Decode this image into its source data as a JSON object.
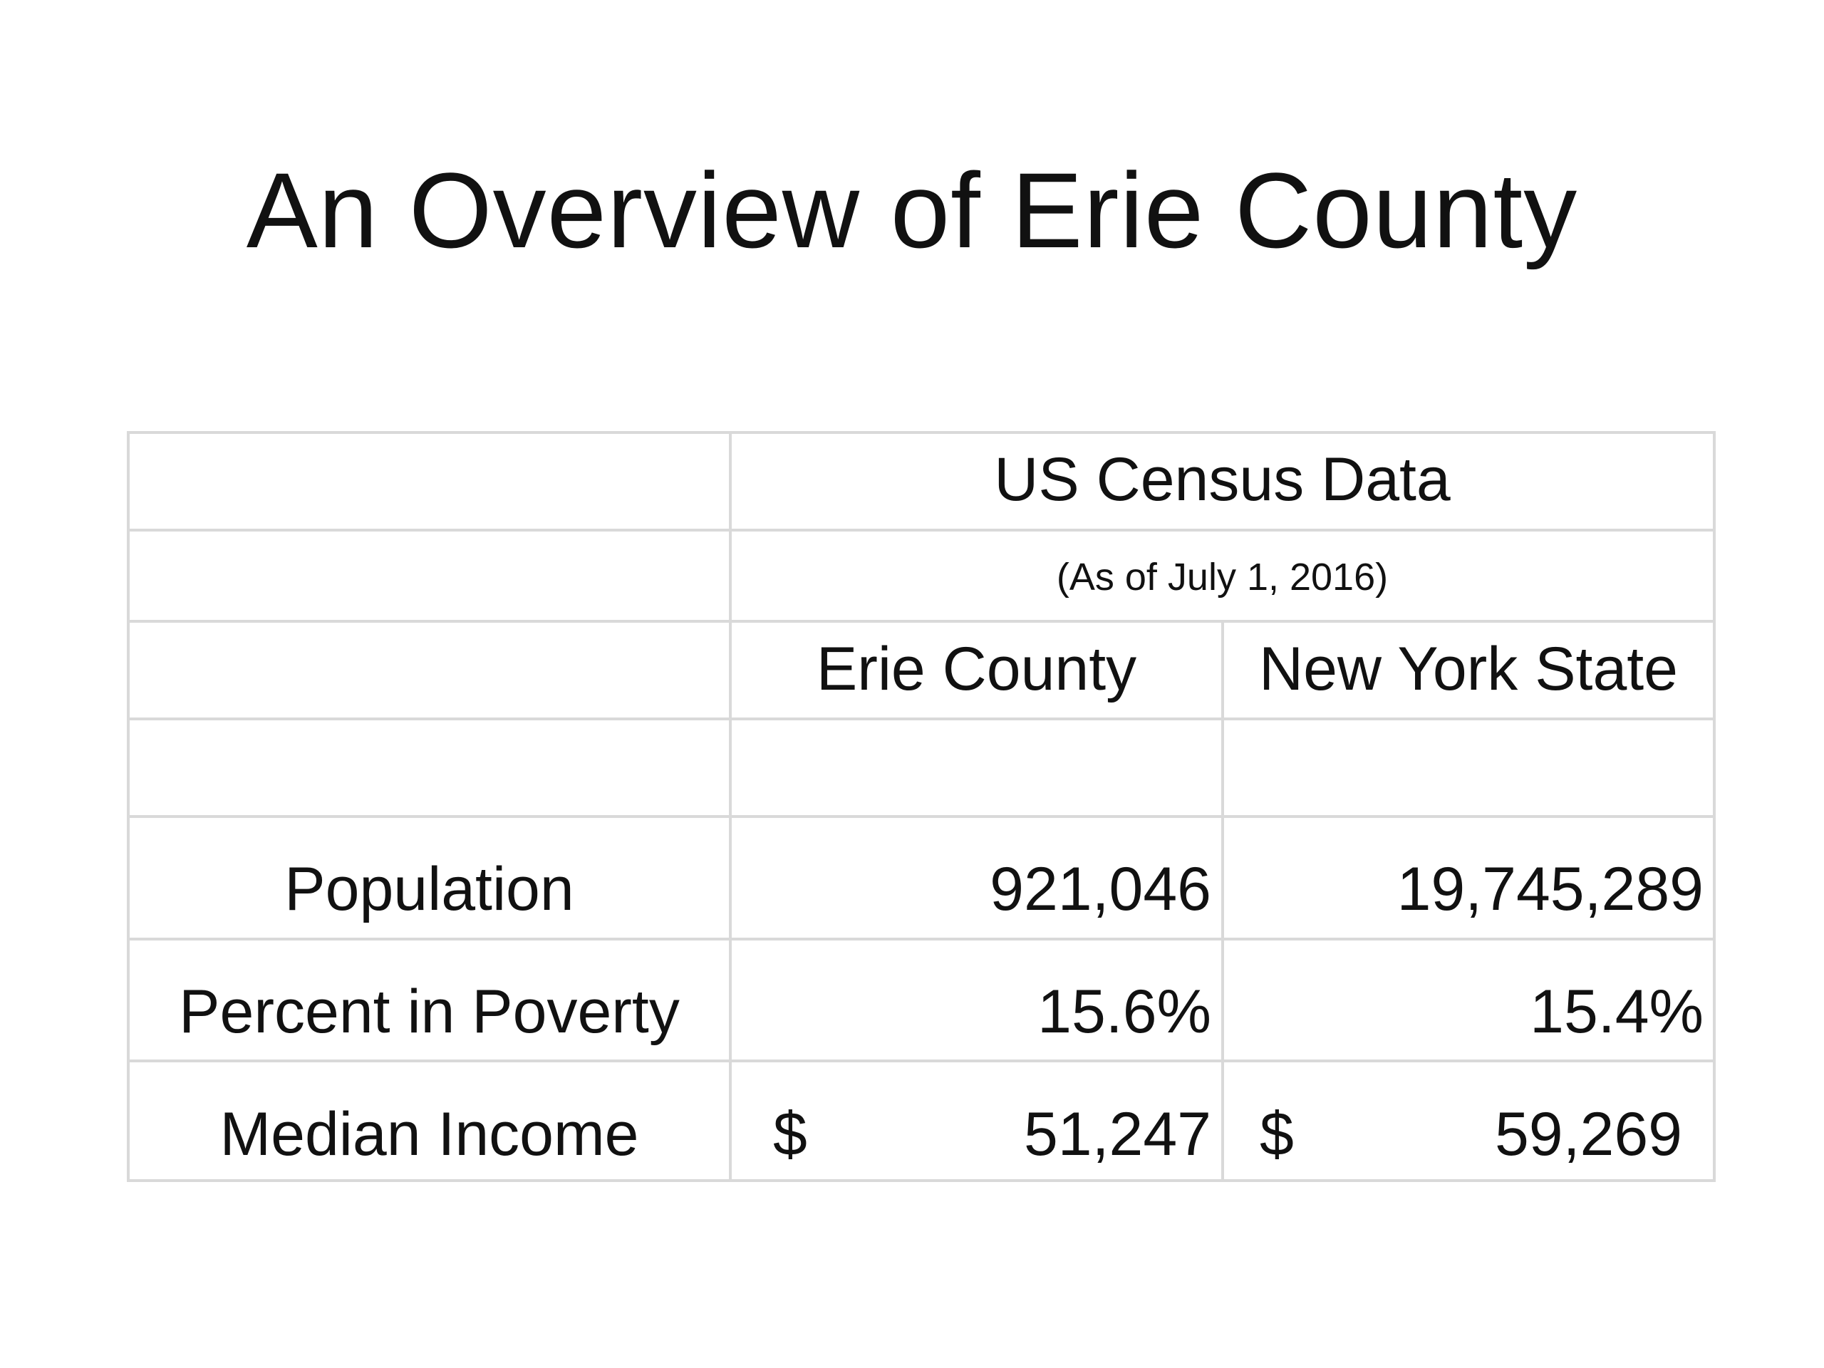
{
  "slide": {
    "title": "An Overview of Erie County"
  },
  "table": {
    "header": {
      "group_title": "US Census Data",
      "group_subtitle": "(As of July 1, 2016)",
      "columns": [
        "Erie County",
        "New York State"
      ]
    },
    "rows": [
      {
        "label": "Population",
        "erie_currency": "",
        "erie_value": "921,046",
        "nys_currency": "",
        "nys_value": "19,745,289"
      },
      {
        "label": "Percent in Poverty",
        "erie_currency": "",
        "erie_value": "15.6%",
        "nys_currency": "",
        "nys_value": "15.4%"
      },
      {
        "label": "Median Income",
        "erie_currency": "$",
        "erie_value": "51,247",
        "nys_currency": "$",
        "nys_value": "59,269"
      }
    ]
  }
}
